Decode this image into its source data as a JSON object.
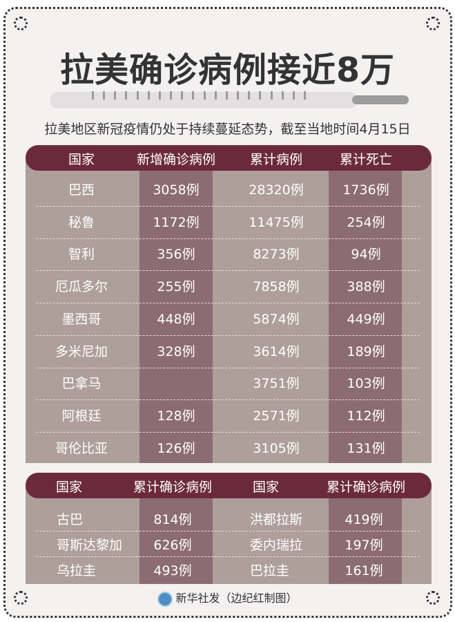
{
  "title": "拉美确诊病例接近8万",
  "subtitle": "拉美地区新冠疫情仍处于持续蔓延态势，截至当地时间4月15日",
  "colors": {
    "header": "#6b2a3c",
    "row": "#ae9f9b",
    "band": "#8b6c72"
  },
  "table1": {
    "headers": [
      "国家",
      "新增确诊病例",
      "累计病例",
      "累计死亡"
    ],
    "rows": [
      [
        "巴西",
        "3058例",
        "28320例",
        "1736例"
      ],
      [
        "秘鲁",
        "1172例",
        "11475例",
        "254例"
      ],
      [
        "智利",
        "356例",
        "8273例",
        "94例"
      ],
      [
        "厄瓜多尔",
        "255例",
        "7858例",
        "388例"
      ],
      [
        "墨西哥",
        "448例",
        "5874例",
        "449例"
      ],
      [
        "多米尼加",
        "328例",
        "3614例",
        "189例"
      ],
      [
        "巴拿马",
        "",
        "3751例",
        "103例"
      ],
      [
        "阿根廷",
        "128例",
        "2571例",
        "112例"
      ],
      [
        "哥伦比亚",
        "126例",
        "3105例",
        "131例"
      ]
    ]
  },
  "table2": {
    "headers": [
      "国家",
      "累计确诊病例",
      "国家",
      "累计确诊病例"
    ],
    "rows": [
      [
        "古巴",
        "814例",
        "洪都拉斯",
        "419例"
      ],
      [
        "哥斯达黎加",
        "626例",
        "委内瑞拉",
        "197例"
      ],
      [
        "乌拉圭",
        "493例",
        "巴拉圭",
        "161例"
      ]
    ]
  },
  "footer": {
    "logo_icon": "xinhua-logo",
    "credit": "新华社发（边纪红制图）"
  }
}
